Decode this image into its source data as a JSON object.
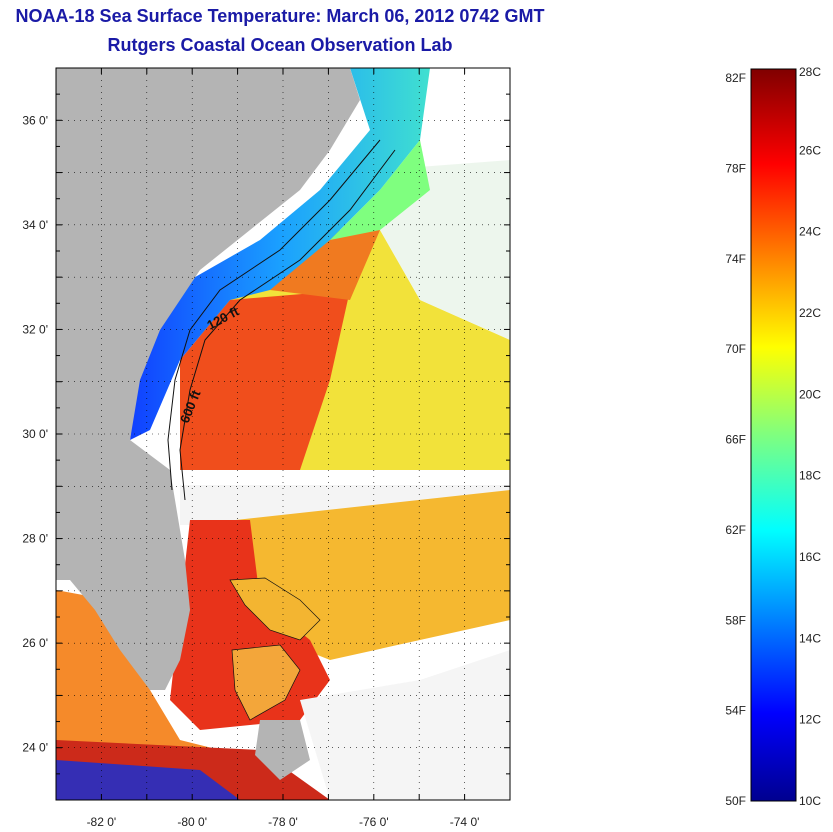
{
  "title": "NOAA-18 Sea Surface Temperature:  March 06, 2012 0742 GMT",
  "subtitle": "Rutgers Coastal Ocean Observation Lab",
  "map": {
    "lon_range": [
      -83,
      -73
    ],
    "lat_range": [
      23,
      37
    ],
    "lon_ticks": [
      "-82 0'",
      "-80 0'",
      "-78 0'",
      "-76 0'",
      "-74 0'"
    ],
    "lat_ticks": [
      "36 0'",
      "34 0'",
      "32 0'",
      "30 0'",
      "28 0'",
      "26 0'",
      "24 0'"
    ],
    "contour_labels": [
      "120 ft",
      "600 ft"
    ],
    "land_color": "#b4b4b4",
    "grid": true
  },
  "colorbar": {
    "fahrenheit_labels": [
      "82F",
      "78F",
      "74F",
      "70F",
      "66F",
      "62F",
      "58F",
      "54F",
      "50F"
    ],
    "celsius_labels": [
      "28C",
      "26C",
      "24C",
      "22C",
      "20C",
      "18C",
      "16C",
      "14C",
      "12C",
      "10C"
    ],
    "colormap": "jet",
    "range_c": [
      10,
      28
    ]
  }
}
